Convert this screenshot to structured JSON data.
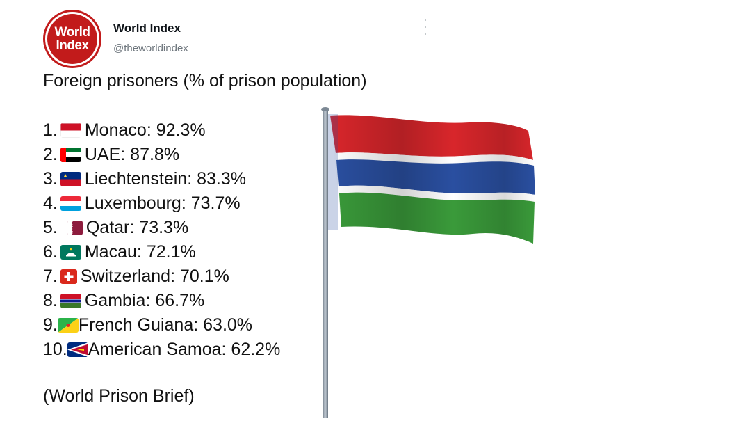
{
  "account": {
    "avatar_line1": "World",
    "avatar_line2": "Index",
    "name": "World Index",
    "handle": "@theworldindex"
  },
  "post": {
    "title": "Foreign prisoners (% of prison population)",
    "items": [
      {
        "rank": "1.",
        "flag": "monaco-flag-icon",
        "country": "Monaco",
        "value": "92.3%"
      },
      {
        "rank": "2.",
        "flag": "uae-flag-icon",
        "country": "UAE",
        "value": "87.8%"
      },
      {
        "rank": "3.",
        "flag": "liechtenstein-flag-icon",
        "country": "Liechtenstein",
        "value": "83.3%"
      },
      {
        "rank": "4.",
        "flag": "luxembourg-flag-icon",
        "country": "Luxembourg",
        "value": "73.7%"
      },
      {
        "rank": "5.",
        "flag": "qatar-flag-icon",
        "country": "Qatar",
        "value": "73.3%"
      },
      {
        "rank": "6.",
        "flag": "macau-flag-icon",
        "country": "Macau",
        "value": "72.1%"
      },
      {
        "rank": "7.",
        "flag": "switzerland-flag-icon",
        "country": "Switzerland",
        "value": "70.1%"
      },
      {
        "rank": "8.",
        "flag": "gambia-flag-icon",
        "country": "Gambia",
        "value": "66.7%"
      },
      {
        "rank": "9.",
        "flag": "french-guiana-flag-icon",
        "country": "French Guiana",
        "value": "63.0%"
      },
      {
        "rank": "10.",
        "flag": "american-samoa-flag-icon",
        "country": "American Samoa",
        "value": "62.2%"
      }
    ],
    "source": "(World Prison Brief)"
  },
  "image": {
    "subject": "gambia-flag-on-pole",
    "colors": {
      "red": "#d8262b",
      "blue": "#2a4fa0",
      "green": "#3a9a3a",
      "white": "#ffffff",
      "pole": "#8a96a3"
    }
  },
  "colors": {
    "brand_red": "#c21b1b",
    "text": "#111111",
    "muted": "#6e767d"
  }
}
